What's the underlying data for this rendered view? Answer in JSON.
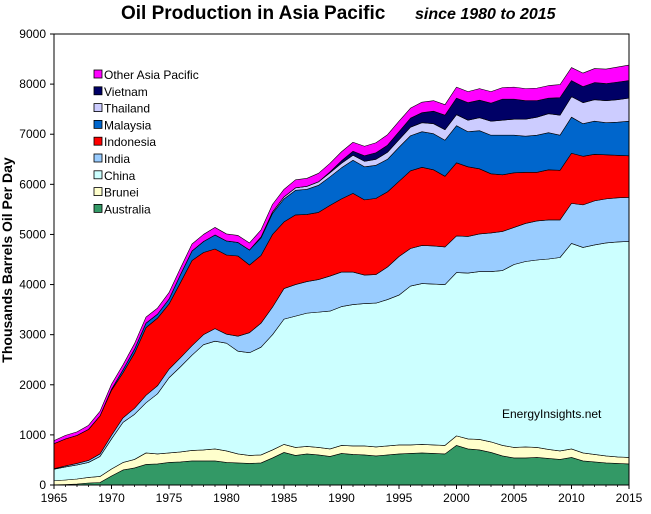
{
  "chart_data": {
    "type": "area",
    "stacked": true,
    "title": "Oil Production in Asia Pacific",
    "subtitle": "since 1980 to 2015",
    "ylabel": "Thousands Barrels Oil Per Day",
    "xlabel": "",
    "xlim": [
      1965,
      2015
    ],
    "ylim": [
      0,
      9000
    ],
    "x_ticks": [
      "1965",
      "1970",
      "1975",
      "1980",
      "1985",
      "1990",
      "1995",
      "2000",
      "2005",
      "2010",
      "2015"
    ],
    "y_ticks": [
      "0",
      "1000",
      "2000",
      "3000",
      "4000",
      "5000",
      "6000",
      "7000",
      "8000",
      "9000"
    ],
    "annotation": "EnergyInsights.net",
    "legend_position": "top-left",
    "x": [
      1965,
      1966,
      1967,
      1968,
      1969,
      1970,
      1971,
      1972,
      1973,
      1974,
      1975,
      1976,
      1977,
      1978,
      1979,
      1980,
      1981,
      1982,
      1983,
      1984,
      1985,
      1986,
      1987,
      1988,
      1989,
      1990,
      1991,
      1992,
      1993,
      1994,
      1995,
      1996,
      1997,
      1998,
      1999,
      2000,
      2001,
      2002,
      2003,
      2004,
      2005,
      2006,
      2007,
      2008,
      2009,
      2010,
      2011,
      2012,
      2013,
      2014,
      2015
    ],
    "series": [
      {
        "name": "Australia",
        "color": "#339966",
        "values": [
          5,
          10,
          20,
          40,
          50,
          180,
          300,
          340,
          410,
          420,
          450,
          460,
          480,
          480,
          480,
          450,
          440,
          430,
          440,
          540,
          650,
          590,
          620,
          600,
          570,
          630,
          610,
          600,
          580,
          600,
          620,
          630,
          640,
          630,
          620,
          790,
          720,
          700,
          650,
          580,
          540,
          540,
          550,
          530,
          510,
          550,
          480,
          460,
          440,
          430,
          420
        ]
      },
      {
        "name": "Brunei",
        "color": "#ffffcc",
        "values": [
          80,
          90,
          100,
          110,
          120,
          140,
          150,
          170,
          230,
          200,
          190,
          200,
          210,
          220,
          240,
          230,
          180,
          160,
          160,
          160,
          160,
          160,
          150,
          150,
          150,
          160,
          170,
          180,
          180,
          180,
          180,
          170,
          170,
          170,
          170,
          190,
          200,
          210,
          210,
          210,
          210,
          220,
          200,
          180,
          170,
          170,
          160,
          150,
          140,
          130,
          130
        ]
      },
      {
        "name": "China",
        "color": "#ccffff",
        "values": [
          230,
          260,
          280,
          300,
          400,
          600,
          800,
          900,
          1000,
          1200,
          1500,
          1700,
          1900,
          2100,
          2150,
          2150,
          2050,
          2050,
          2150,
          2300,
          2500,
          2620,
          2660,
          2700,
          2750,
          2770,
          2820,
          2840,
          2870,
          2920,
          2990,
          3170,
          3210,
          3210,
          3210,
          3260,
          3310,
          3350,
          3400,
          3490,
          3650,
          3700,
          3740,
          3800,
          3860,
          4100,
          4100,
          4180,
          4250,
          4290,
          4310
        ]
      },
      {
        "name": "India",
        "color": "#99ccff",
        "values": [
          10,
          20,
          30,
          40,
          50,
          70,
          90,
          120,
          150,
          160,
          170,
          180,
          190,
          200,
          250,
          180,
          300,
          400,
          480,
          550,
          610,
          630,
          630,
          650,
          700,
          690,
          650,
          570,
          570,
          650,
          770,
          750,
          760,
          760,
          750,
          730,
          730,
          750,
          770,
          780,
          740,
          760,
          780,
          780,
          750,
          800,
          850,
          880,
          880,
          880,
          880
        ]
      },
      {
        "name": "Indonesia",
        "color": "#ff0000",
        "values": [
          500,
          540,
          560,
          620,
          760,
          900,
          900,
          1100,
          1350,
          1350,
          1300,
          1500,
          1700,
          1640,
          1590,
          1580,
          1600,
          1350,
          1350,
          1450,
          1330,
          1390,
          1340,
          1340,
          1410,
          1460,
          1570,
          1500,
          1520,
          1500,
          1500,
          1550,
          1560,
          1520,
          1410,
          1460,
          1390,
          1300,
          1180,
          1130,
          1090,
          1020,
          970,
          1000,
          990,
          1000,
          970,
          930,
          880,
          850,
          830
        ]
      },
      {
        "name": "Malaysia",
        "color": "#0066cc",
        "values": [
          0,
          0,
          0,
          0,
          0,
          20,
          60,
          80,
          90,
          80,
          100,
          160,
          190,
          220,
          280,
          280,
          270,
          300,
          350,
          420,
          460,
          490,
          500,
          540,
          570,
          620,
          660,
          660,
          660,
          650,
          680,
          700,
          710,
          720,
          720,
          740,
          700,
          760,
          770,
          790,
          750,
          720,
          740,
          740,
          700,
          720,
          650,
          660,
          640,
          660,
          690
        ]
      },
      {
        "name": "Thailand",
        "color": "#ccccff",
        "values": [
          0,
          0,
          0,
          0,
          0,
          0,
          0,
          0,
          0,
          0,
          0,
          0,
          0,
          0,
          0,
          0,
          0,
          0,
          20,
          30,
          40,
          50,
          60,
          70,
          80,
          90,
          100,
          110,
          120,
          140,
          150,
          170,
          180,
          200,
          210,
          220,
          230,
          260,
          280,
          300,
          320,
          340,
          360,
          380,
          400,
          410,
          420,
          430,
          440,
          450,
          460
        ]
      },
      {
        "name": "Vietnam",
        "color": "#000066",
        "values": [
          0,
          0,
          0,
          0,
          0,
          0,
          0,
          0,
          0,
          0,
          0,
          0,
          0,
          0,
          0,
          0,
          0,
          0,
          0,
          0,
          0,
          0,
          0,
          0,
          20,
          50,
          80,
          110,
          130,
          140,
          160,
          180,
          200,
          250,
          290,
          330,
          350,
          350,
          360,
          420,
          400,
          370,
          330,
          310,
          350,
          320,
          320,
          340,
          340,
          350,
          350
        ]
      },
      {
        "name": "Other Asia Pacific",
        "color": "#ff00ff",
        "values": [
          60,
          70,
          70,
          80,
          90,
          100,
          100,
          110,
          120,
          120,
          130,
          130,
          140,
          140,
          150,
          140,
          140,
          140,
          140,
          150,
          150,
          160,
          160,
          170,
          170,
          180,
          180,
          190,
          200,
          210,
          210,
          200,
          210,
          210,
          210,
          220,
          220,
          230,
          230,
          230,
          240,
          240,
          250,
          250,
          260,
          260,
          270,
          280,
          290,
          300,
          310
        ]
      }
    ]
  }
}
